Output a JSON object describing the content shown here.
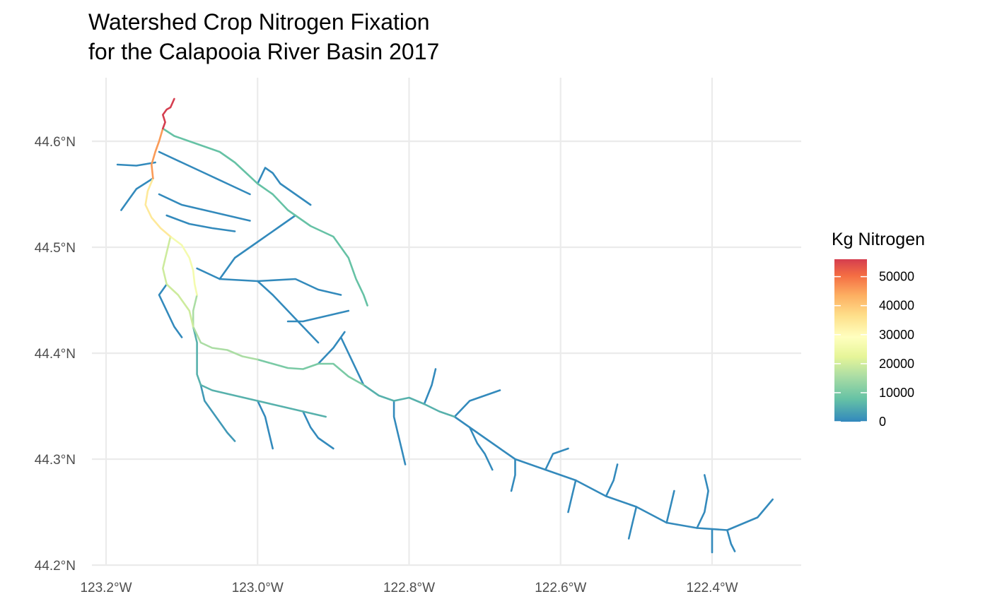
{
  "title": {
    "line1": "Watershed Crop Nitrogen Fixation",
    "line2": "for the Calapooia River Basin 2017"
  },
  "axes": {
    "x_ticks": [
      "123.2°W",
      "123.0°W",
      "122.8°W",
      "122.6°W",
      "122.4°W"
    ],
    "y_ticks": [
      "44.2°N",
      "44.3°N",
      "44.4°N",
      "44.5°N",
      "44.6°N"
    ]
  },
  "legend": {
    "title": "Kg Nitrogen",
    "labels": [
      "50000",
      "40000",
      "30000",
      "20000",
      "10000",
      "0"
    ],
    "placement": "right"
  },
  "colors": {
    "scale": [
      "#3288bd",
      "#66c2a5",
      "#abdda4",
      "#e6f598",
      "#ffffbf",
      "#fee08b",
      "#fdae61",
      "#f46d43",
      "#d53e4f"
    ],
    "grid": "#ebebeb"
  },
  "chart_data": {
    "type": "map",
    "title": "Watershed Crop Nitrogen Fixation\nfor the Calapooia River Basin 2017",
    "xlim": [
      -123.21,
      -122.27
    ],
    "ylim": [
      44.2,
      44.66
    ],
    "x_ticks": [
      -123.2,
      -123.0,
      -122.8,
      -122.6,
      -122.4
    ],
    "y_ticks": [
      44.2,
      44.3,
      44.4,
      44.5,
      44.6
    ],
    "value_range": [
      0,
      56000
    ],
    "segments": [
      {
        "name": "outlet",
        "value": 56000,
        "coords": [
          [
            -123.11,
            44.64
          ],
          [
            -123.115,
            44.632
          ],
          [
            -123.12,
            44.63
          ],
          [
            -123.125,
            44.625
          ],
          [
            -123.122,
            44.618
          ],
          [
            -123.125,
            44.612
          ]
        ]
      },
      {
        "name": "main-lower",
        "value": 44000,
        "coords": [
          [
            -123.125,
            44.612
          ],
          [
            -123.13,
            44.6
          ],
          [
            -123.135,
            44.59
          ],
          [
            -123.14,
            44.578
          ],
          [
            -123.138,
            44.565
          ]
        ]
      },
      {
        "name": "main-mid",
        "value": 33000,
        "coords": [
          [
            -123.138,
            44.565
          ],
          [
            -123.145,
            44.553
          ],
          [
            -123.148,
            44.54
          ],
          [
            -123.14,
            44.528
          ],
          [
            -123.128,
            44.518
          ],
          [
            -123.115,
            44.51
          ]
        ]
      },
      {
        "name": "main-upper1",
        "value": 25000,
        "coords": [
          [
            -123.115,
            44.51
          ],
          [
            -123.1,
            44.502
          ],
          [
            -123.09,
            44.49
          ],
          [
            -123.085,
            44.478
          ],
          [
            -123.083,
            44.465
          ],
          [
            -123.08,
            44.455
          ]
        ]
      },
      {
        "name": "main-upper2",
        "value": 14000,
        "coords": [
          [
            -123.08,
            44.455
          ],
          [
            -123.085,
            44.44
          ],
          [
            -123.085,
            44.425
          ],
          [
            -123.075,
            44.41
          ],
          [
            -123.06,
            44.405
          ],
          [
            -123.04,
            44.403
          ],
          [
            -123.02,
            44.397
          ],
          [
            -123.0,
            44.394
          ]
        ]
      },
      {
        "name": "main-upper3",
        "value": 9000,
        "coords": [
          [
            -123.0,
            44.394
          ],
          [
            -122.98,
            44.39
          ],
          [
            -122.96,
            44.386
          ],
          [
            -122.94,
            44.385
          ],
          [
            -122.92,
            44.39
          ],
          [
            -122.9,
            44.39
          ],
          [
            -122.88,
            44.378
          ],
          [
            -122.86,
            44.37
          ]
        ]
      },
      {
        "name": "main-upper4",
        "value": 5000,
        "coords": [
          [
            -122.86,
            44.37
          ],
          [
            -122.84,
            44.36
          ],
          [
            -122.82,
            44.355
          ],
          [
            -122.8,
            44.358
          ],
          [
            -122.78,
            44.352
          ],
          [
            -122.76,
            44.345
          ],
          [
            -122.74,
            44.34
          ]
        ]
      },
      {
        "name": "main-headwaters",
        "value": 300,
        "coords": [
          [
            -122.74,
            44.34
          ],
          [
            -122.72,
            44.33
          ],
          [
            -122.7,
            44.32
          ],
          [
            -122.68,
            44.31
          ],
          [
            -122.66,
            44.3
          ],
          [
            -122.62,
            44.29
          ],
          [
            -122.58,
            44.28
          ],
          [
            -122.54,
            44.265
          ],
          [
            -122.5,
            44.255
          ],
          [
            -122.46,
            44.24
          ],
          [
            -122.42,
            44.235
          ],
          [
            -122.38,
            44.233
          ],
          [
            -122.34,
            44.245
          ],
          [
            -122.32,
            44.262
          ]
        ]
      },
      {
        "name": "west-fork",
        "value": 18000,
        "coords": [
          [
            -123.115,
            44.51
          ],
          [
            -123.12,
            44.495
          ],
          [
            -123.125,
            44.48
          ],
          [
            -123.12,
            44.465
          ],
          [
            -123.105,
            44.455
          ],
          [
            -123.09,
            44.44
          ],
          [
            -123.085,
            44.425
          ]
        ]
      },
      {
        "name": "north-trib",
        "value": 7000,
        "coords": [
          [
            -123.125,
            44.612
          ],
          [
            -123.11,
            44.605
          ],
          [
            -123.09,
            44.6
          ],
          [
            -123.07,
            44.595
          ],
          [
            -123.05,
            44.59
          ],
          [
            -123.03,
            44.58
          ],
          [
            -123.015,
            44.57
          ],
          [
            -123.0,
            44.56
          ],
          [
            -122.98,
            44.55
          ],
          [
            -122.96,
            44.535
          ],
          [
            -122.93,
            44.52
          ],
          [
            -122.9,
            44.51
          ],
          [
            -122.88,
            44.49
          ],
          [
            -122.87,
            44.47
          ],
          [
            -122.86,
            44.455
          ],
          [
            -122.855,
            44.445
          ]
        ]
      },
      {
        "name": "t1",
        "value": 200,
        "coords": [
          [
            -123.08,
            44.48
          ],
          [
            -123.05,
            44.47
          ],
          [
            -123.0,
            44.468
          ],
          [
            -122.95,
            44.47
          ],
          [
            -122.92,
            44.46
          ],
          [
            -122.89,
            44.455
          ]
        ]
      },
      {
        "name": "t2",
        "value": 200,
        "coords": [
          [
            -123.05,
            44.47
          ],
          [
            -123.03,
            44.49
          ],
          [
            -123.0,
            44.505
          ],
          [
            -122.97,
            44.52
          ],
          [
            -122.95,
            44.53
          ]
        ]
      },
      {
        "name": "t3",
        "value": 200,
        "coords": [
          [
            -123.0,
            44.468
          ],
          [
            -122.98,
            44.455
          ],
          [
            -122.96,
            44.44
          ],
          [
            -122.94,
            44.425
          ],
          [
            -122.92,
            44.41
          ]
        ]
      },
      {
        "name": "t4",
        "value": 200,
        "coords": [
          [
            -122.96,
            44.43
          ],
          [
            -122.94,
            44.43
          ],
          [
            -122.91,
            44.435
          ],
          [
            -122.88,
            44.44
          ]
        ]
      },
      {
        "name": "t5",
        "value": 200,
        "coords": [
          [
            -122.92,
            44.39
          ],
          [
            -122.9,
            44.405
          ],
          [
            -122.885,
            44.42
          ]
        ]
      },
      {
        "name": "t6",
        "value": 200,
        "coords": [
          [
            -123.13,
            44.59
          ],
          [
            -123.1,
            44.58
          ],
          [
            -123.07,
            44.57
          ],
          [
            -123.04,
            44.56
          ],
          [
            -123.01,
            44.55
          ]
        ]
      },
      {
        "name": "t7",
        "value": 200,
        "coords": [
          [
            -123.135,
            44.58
          ],
          [
            -123.16,
            44.577
          ],
          [
            -123.185,
            44.578
          ]
        ]
      },
      {
        "name": "t8",
        "value": 200,
        "coords": [
          [
            -123.138,
            44.565
          ],
          [
            -123.16,
            44.555
          ],
          [
            -123.17,
            44.545
          ],
          [
            -123.18,
            44.535
          ]
        ]
      },
      {
        "name": "t9",
        "value": 200,
        "coords": [
          [
            -123.13,
            44.55
          ],
          [
            -123.1,
            44.54
          ],
          [
            -123.07,
            44.535
          ],
          [
            -123.04,
            44.53
          ],
          [
            -123.01,
            44.525
          ]
        ]
      },
      {
        "name": "t10",
        "value": 200,
        "coords": [
          [
            -123.12,
            44.53
          ],
          [
            -123.09,
            44.522
          ],
          [
            -123.06,
            44.518
          ],
          [
            -123.03,
            44.515
          ]
        ]
      },
      {
        "name": "t11",
        "value": 200,
        "coords": [
          [
            -123.12,
            44.465
          ],
          [
            -123.13,
            44.455
          ],
          [
            -123.12,
            44.44
          ],
          [
            -123.11,
            44.425
          ],
          [
            -123.1,
            44.415
          ]
        ]
      },
      {
        "name": "t12",
        "value": 5000,
        "coords": [
          [
            -123.085,
            44.425
          ],
          [
            -123.08,
            44.41
          ],
          [
            -123.08,
            44.395
          ],
          [
            -123.08,
            44.38
          ],
          [
            -123.075,
            44.37
          ],
          [
            -123.06,
            44.365
          ],
          [
            -123.03,
            44.36
          ],
          [
            -123.0,
            44.355
          ],
          [
            -122.97,
            44.35
          ],
          [
            -122.94,
            44.345
          ],
          [
            -122.91,
            44.34
          ]
        ]
      },
      {
        "name": "t13",
        "value": 2000,
        "coords": [
          [
            -123.075,
            44.37
          ],
          [
            -123.07,
            44.355
          ],
          [
            -123.06,
            44.345
          ],
          [
            -123.05,
            44.335
          ],
          [
            -123.04,
            44.325
          ],
          [
            -123.03,
            44.317
          ]
        ]
      },
      {
        "name": "t14",
        "value": 200,
        "coords": [
          [
            -123.0,
            44.355
          ],
          [
            -122.99,
            44.34
          ],
          [
            -122.985,
            44.325
          ],
          [
            -122.98,
            44.31
          ]
        ]
      },
      {
        "name": "t15",
        "value": 200,
        "coords": [
          [
            -122.94,
            44.345
          ],
          [
            -122.93,
            44.33
          ],
          [
            -122.92,
            44.32
          ],
          [
            -122.9,
            44.31
          ]
        ]
      },
      {
        "name": "t16",
        "value": 200,
        "coords": [
          [
            -122.82,
            44.355
          ],
          [
            -122.82,
            44.34
          ],
          [
            -122.815,
            44.325
          ],
          [
            -122.81,
            44.31
          ],
          [
            -122.805,
            44.295
          ]
        ]
      },
      {
        "name": "t17",
        "value": 200,
        "coords": [
          [
            -122.78,
            44.352
          ],
          [
            -122.77,
            44.37
          ],
          [
            -122.765,
            44.385
          ]
        ]
      },
      {
        "name": "t18",
        "value": 200,
        "coords": [
          [
            -122.74,
            44.34
          ],
          [
            -122.72,
            44.355
          ],
          [
            -122.7,
            44.36
          ],
          [
            -122.68,
            44.365
          ]
        ]
      },
      {
        "name": "t19",
        "value": 200,
        "coords": [
          [
            -122.72,
            44.33
          ],
          [
            -122.71,
            44.315
          ],
          [
            -122.7,
            44.305
          ],
          [
            -122.69,
            44.29
          ]
        ]
      },
      {
        "name": "t20",
        "value": 200,
        "coords": [
          [
            -122.62,
            44.29
          ],
          [
            -122.61,
            44.305
          ],
          [
            -122.59,
            44.31
          ]
        ]
      },
      {
        "name": "t21",
        "value": 200,
        "coords": [
          [
            -122.54,
            44.265
          ],
          [
            -122.53,
            44.28
          ],
          [
            -122.525,
            44.295
          ]
        ]
      },
      {
        "name": "t22",
        "value": 200,
        "coords": [
          [
            -122.46,
            44.24
          ],
          [
            -122.455,
            44.255
          ],
          [
            -122.45,
            44.27
          ]
        ]
      },
      {
        "name": "t23",
        "value": 200,
        "coords": [
          [
            -122.42,
            44.235
          ],
          [
            -122.41,
            44.25
          ],
          [
            -122.405,
            44.27
          ],
          [
            -122.41,
            44.285
          ]
        ]
      },
      {
        "name": "t24",
        "value": 200,
        "coords": [
          [
            -122.38,
            44.233
          ],
          [
            -122.375,
            44.22
          ],
          [
            -122.37,
            44.213
          ]
        ]
      },
      {
        "name": "t25",
        "value": 200,
        "coords": [
          [
            -122.4,
            44.234
          ],
          [
            -122.4,
            44.22
          ],
          [
            -122.4,
            44.212
          ]
        ]
      },
      {
        "name": "t26",
        "value": 200,
        "coords": [
          [
            -122.5,
            44.255
          ],
          [
            -122.505,
            44.24
          ],
          [
            -122.51,
            44.225
          ]
        ]
      },
      {
        "name": "t27",
        "value": 200,
        "coords": [
          [
            -122.58,
            44.28
          ],
          [
            -122.585,
            44.265
          ],
          [
            -122.59,
            44.25
          ]
        ]
      },
      {
        "name": "t28",
        "value": 200,
        "coords": [
          [
            -122.66,
            44.3
          ],
          [
            -122.66,
            44.285
          ],
          [
            -122.665,
            44.27
          ]
        ]
      },
      {
        "name": "t29",
        "value": 200,
        "coords": [
          [
            -122.86,
            44.37
          ],
          [
            -122.87,
            44.385
          ],
          [
            -122.88,
            44.4
          ],
          [
            -122.89,
            44.415
          ]
        ]
      },
      {
        "name": "t30",
        "value": 200,
        "coords": [
          [
            -123.0,
            44.56
          ],
          [
            -122.99,
            44.575
          ],
          [
            -122.98,
            44.57
          ],
          [
            -122.97,
            44.56
          ],
          [
            -122.95,
            44.55
          ],
          [
            -122.93,
            44.54
          ]
        ]
      }
    ]
  }
}
